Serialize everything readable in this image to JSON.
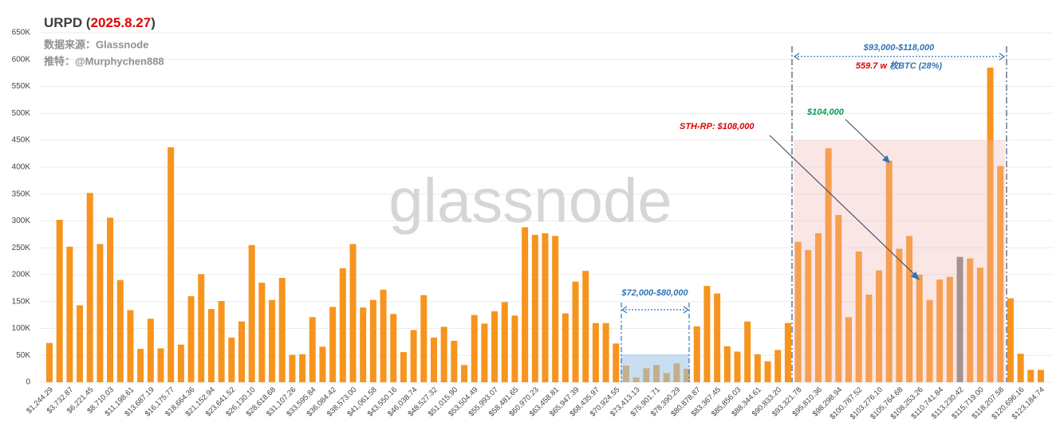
{
  "chart_data": {
    "type": "bar",
    "title_parts": [
      "URPD (",
      "2025.8.27",
      ")"
    ],
    "subtitles": [
      "数据来源：Glassnode",
      "推特：@Murphychen888"
    ],
    "watermark": "glassnode",
    "annotations": {
      "range_low": "$72,000-$80,000",
      "range_high": "$93,000-$118,000",
      "supply_amount": "559.7 w",
      "supply_text": "枚BTC (28%)",
      "level_104": "$104,000",
      "sth_rp": "STH-RP: $108,000"
    },
    "categories": [
      "$1,244.29",
      null,
      "$3,732.87",
      null,
      "$6,221.45",
      null,
      "$8,710.03",
      null,
      "$11,198.61",
      null,
      "$13,687.19",
      null,
      "$16,175.77",
      null,
      "$18,664.36",
      null,
      "$21,152.94",
      null,
      "$23,641.52",
      null,
      "$26,130.10",
      null,
      "$28,618.68",
      null,
      "$31,107.26",
      null,
      "$33,595.84",
      null,
      "$36,084.42",
      null,
      "$38,573.00",
      null,
      "$41,061.58",
      null,
      "$43,550.16",
      null,
      "$46,038.74",
      null,
      "$48,527.32",
      null,
      "$51,015.90",
      null,
      "$53,504.49",
      null,
      "$55,993.07",
      null,
      "$58,481.65",
      null,
      "$60,970.23",
      null,
      "$63,458.81",
      null,
      "$65,947.39",
      null,
      "$68,435.97",
      null,
      "$70,924.55",
      null,
      "$73,413.13",
      null,
      "$75,901.71",
      null,
      "$78,390.29",
      null,
      "$80,878.87",
      null,
      "$83,367.45",
      null,
      "$85,856.03",
      null,
      "$88,344.61",
      null,
      "$90,833.20",
      null,
      "$93,321.78",
      null,
      "$95,810.36",
      null,
      "$98,298.94",
      null,
      "$100,787.52",
      null,
      "$103,276.10",
      null,
      "$105,764.68",
      null,
      "$108,253.26",
      null,
      "$110,741.84",
      null,
      "$113,230.42",
      null,
      "$115,719.00",
      null,
      "$118,207.58",
      null,
      "$120,696.16",
      null,
      "$123,184.74"
    ],
    "values": [
      73,
      302,
      252,
      143,
      352,
      257,
      306,
      190,
      134,
      62,
      118,
      63,
      437,
      70,
      160,
      201,
      136,
      151,
      83,
      113,
      255,
      185,
      153,
      194,
      51,
      52,
      121,
      66,
      140,
      212,
      257,
      139,
      153,
      172,
      127,
      56,
      97,
      162,
      83,
      103,
      77,
      32,
      125,
      109,
      132,
      149,
      124,
      288,
      274,
      277,
      272,
      128,
      187,
      207,
      110,
      110,
      72,
      31,
      9,
      26,
      32,
      17,
      35,
      25,
      104,
      179,
      165,
      67,
      57,
      113,
      52,
      39,
      60,
      110,
      261,
      246,
      277,
      435,
      311,
      121,
      243,
      163,
      208,
      412,
      248,
      272,
      200,
      153,
      191,
      196,
      233,
      230,
      213,
      585,
      402,
      156,
      53,
      23,
      23
    ],
    "color": "#f7941d",
    "highlight": {
      "index": 90,
      "color": "#7f7f7f"
    },
    "ylim": [
      0,
      650
    ],
    "yticks": [
      0,
      {
        "value": 50,
        "label": "50K"
      },
      {
        "value": 100,
        "label": "100K"
      },
      {
        "value": 150,
        "label": "150K"
      },
      {
        "value": 200,
        "label": "200K"
      },
      {
        "value": 250,
        "label": "250K"
      },
      {
        "value": 300,
        "label": "300K"
      },
      {
        "value": 350,
        "label": "350K"
      },
      {
        "value": 400,
        "label": "400K"
      },
      {
        "value": 450,
        "label": "450K"
      },
      {
        "value": 500,
        "label": "500K"
      },
      {
        "value": 550,
        "label": "550K"
      },
      {
        "value": 600,
        "label": "600K"
      },
      {
        "value": 650,
        "label": "650K"
      }
    ],
    "grid": true
  }
}
